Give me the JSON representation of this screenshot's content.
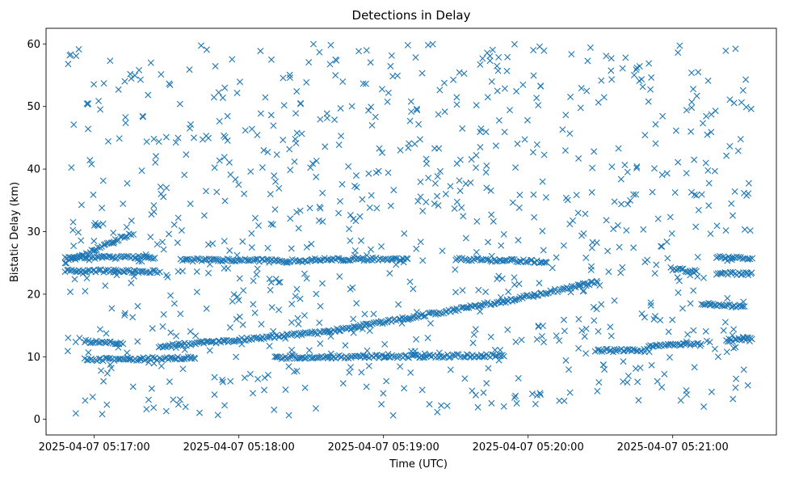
{
  "chart_data": {
    "type": "scatter",
    "title": "Detections in Delay",
    "xlabel": "Time (UTC)",
    "ylabel": "Bistatic Delay (km)",
    "marker": "x",
    "color": "#1f77b4",
    "grid": false,
    "legend": "none",
    "xlim": [
      "2025-04-07 05:16:40",
      "2025-04-07 05:21:43"
    ],
    "ylim": [
      -2.5,
      62.5
    ],
    "x_ticks": [
      "2025-04-07 05:17:00",
      "2025-04-07 05:18:00",
      "2025-04-07 05:19:00",
      "2025-04-07 05:20:00",
      "2025-04-07 05:21:00"
    ],
    "y_ticks": [
      0,
      10,
      20,
      30,
      40,
      50,
      60
    ],
    "time_range": [
      "2025-04-07 05:16:48",
      "2025-04-07 05:21:33"
    ],
    "tracks": [
      {
        "from": [
          "2025-04-07 05:16:48",
          25.0
        ],
        "to": [
          "2025-04-07 05:17:16",
          29.8
        ]
      },
      {
        "from": [
          "2025-04-07 05:16:48",
          23.8
        ],
        "to": [
          "2025-04-07 05:17:27",
          23.6
        ]
      },
      {
        "from": [
          "2025-04-07 05:16:48",
          25.9
        ],
        "to": [
          "2025-04-07 05:17:25",
          25.9
        ]
      },
      {
        "from": [
          "2025-04-07 05:16:56",
          12.5
        ],
        "to": [
          "2025-04-07 05:17:12",
          12.0
        ]
      },
      {
        "from": [
          "2025-04-07 05:17:27",
          11.6
        ],
        "to": [
          "2025-04-07 05:18:37",
          14.0
        ]
      },
      {
        "from": [
          "2025-04-07 05:18:37",
          14.0
        ],
        "to": [
          "2025-04-07 05:19:52",
          19.0
        ]
      },
      {
        "from": [
          "2025-04-07 05:19:52",
          19.0
        ],
        "to": [
          "2025-04-07 05:20:29",
          22.0
        ]
      },
      {
        "from": [
          "2025-04-07 05:17:36",
          25.5
        ],
        "to": [
          "2025-04-07 05:18:30",
          25.3
        ]
      },
      {
        "from": [
          "2025-04-07 05:18:30",
          25.6
        ],
        "to": [
          "2025-04-07 05:19:10",
          25.6
        ]
      },
      {
        "from": [
          "2025-04-07 05:19:30",
          25.6
        ],
        "to": [
          "2025-04-07 05:20:08",
          25.2
        ]
      },
      {
        "from": [
          "2025-04-07 05:18:15",
          9.9
        ],
        "to": [
          "2025-04-07 05:19:50",
          10.2
        ]
      },
      {
        "from": [
          "2025-04-07 05:16:56",
          9.5
        ],
        "to": [
          "2025-04-07 05:17:42",
          9.8
        ]
      },
      {
        "from": [
          "2025-04-07 05:20:28",
          11.0
        ],
        "to": [
          "2025-04-07 05:20:50",
          11.0
        ]
      },
      {
        "from": [
          "2025-04-07 05:20:50",
          11.7
        ],
        "to": [
          "2025-04-07 05:21:12",
          12.0
        ]
      },
      {
        "from": [
          "2025-04-07 05:21:00",
          24.0
        ],
        "to": [
          "2025-04-07 05:21:10",
          23.6
        ]
      },
      {
        "from": [
          "2025-04-07 05:21:18",
          26.0
        ],
        "to": [
          "2025-04-07 05:21:33",
          25.6
        ]
      },
      {
        "from": [
          "2025-04-07 05:21:18",
          23.3
        ],
        "to": [
          "2025-04-07 05:21:33",
          23.3
        ]
      },
      {
        "from": [
          "2025-04-07 05:21:12",
          18.5
        ],
        "to": [
          "2025-04-07 05:21:30",
          18.0
        ]
      },
      {
        "from": [
          "2025-04-07 05:21:22",
          12.5
        ],
        "to": [
          "2025-04-07 05:21:33",
          13.0
        ]
      },
      {
        "from": [
          "2025-04-07 05:17:00",
          31.2
        ],
        "to": [
          "2025-04-07 05:17:02",
          31.2
        ]
      }
    ],
    "clutter": {
      "count": 900,
      "y_range": [
        0.5,
        60
      ]
    }
  }
}
